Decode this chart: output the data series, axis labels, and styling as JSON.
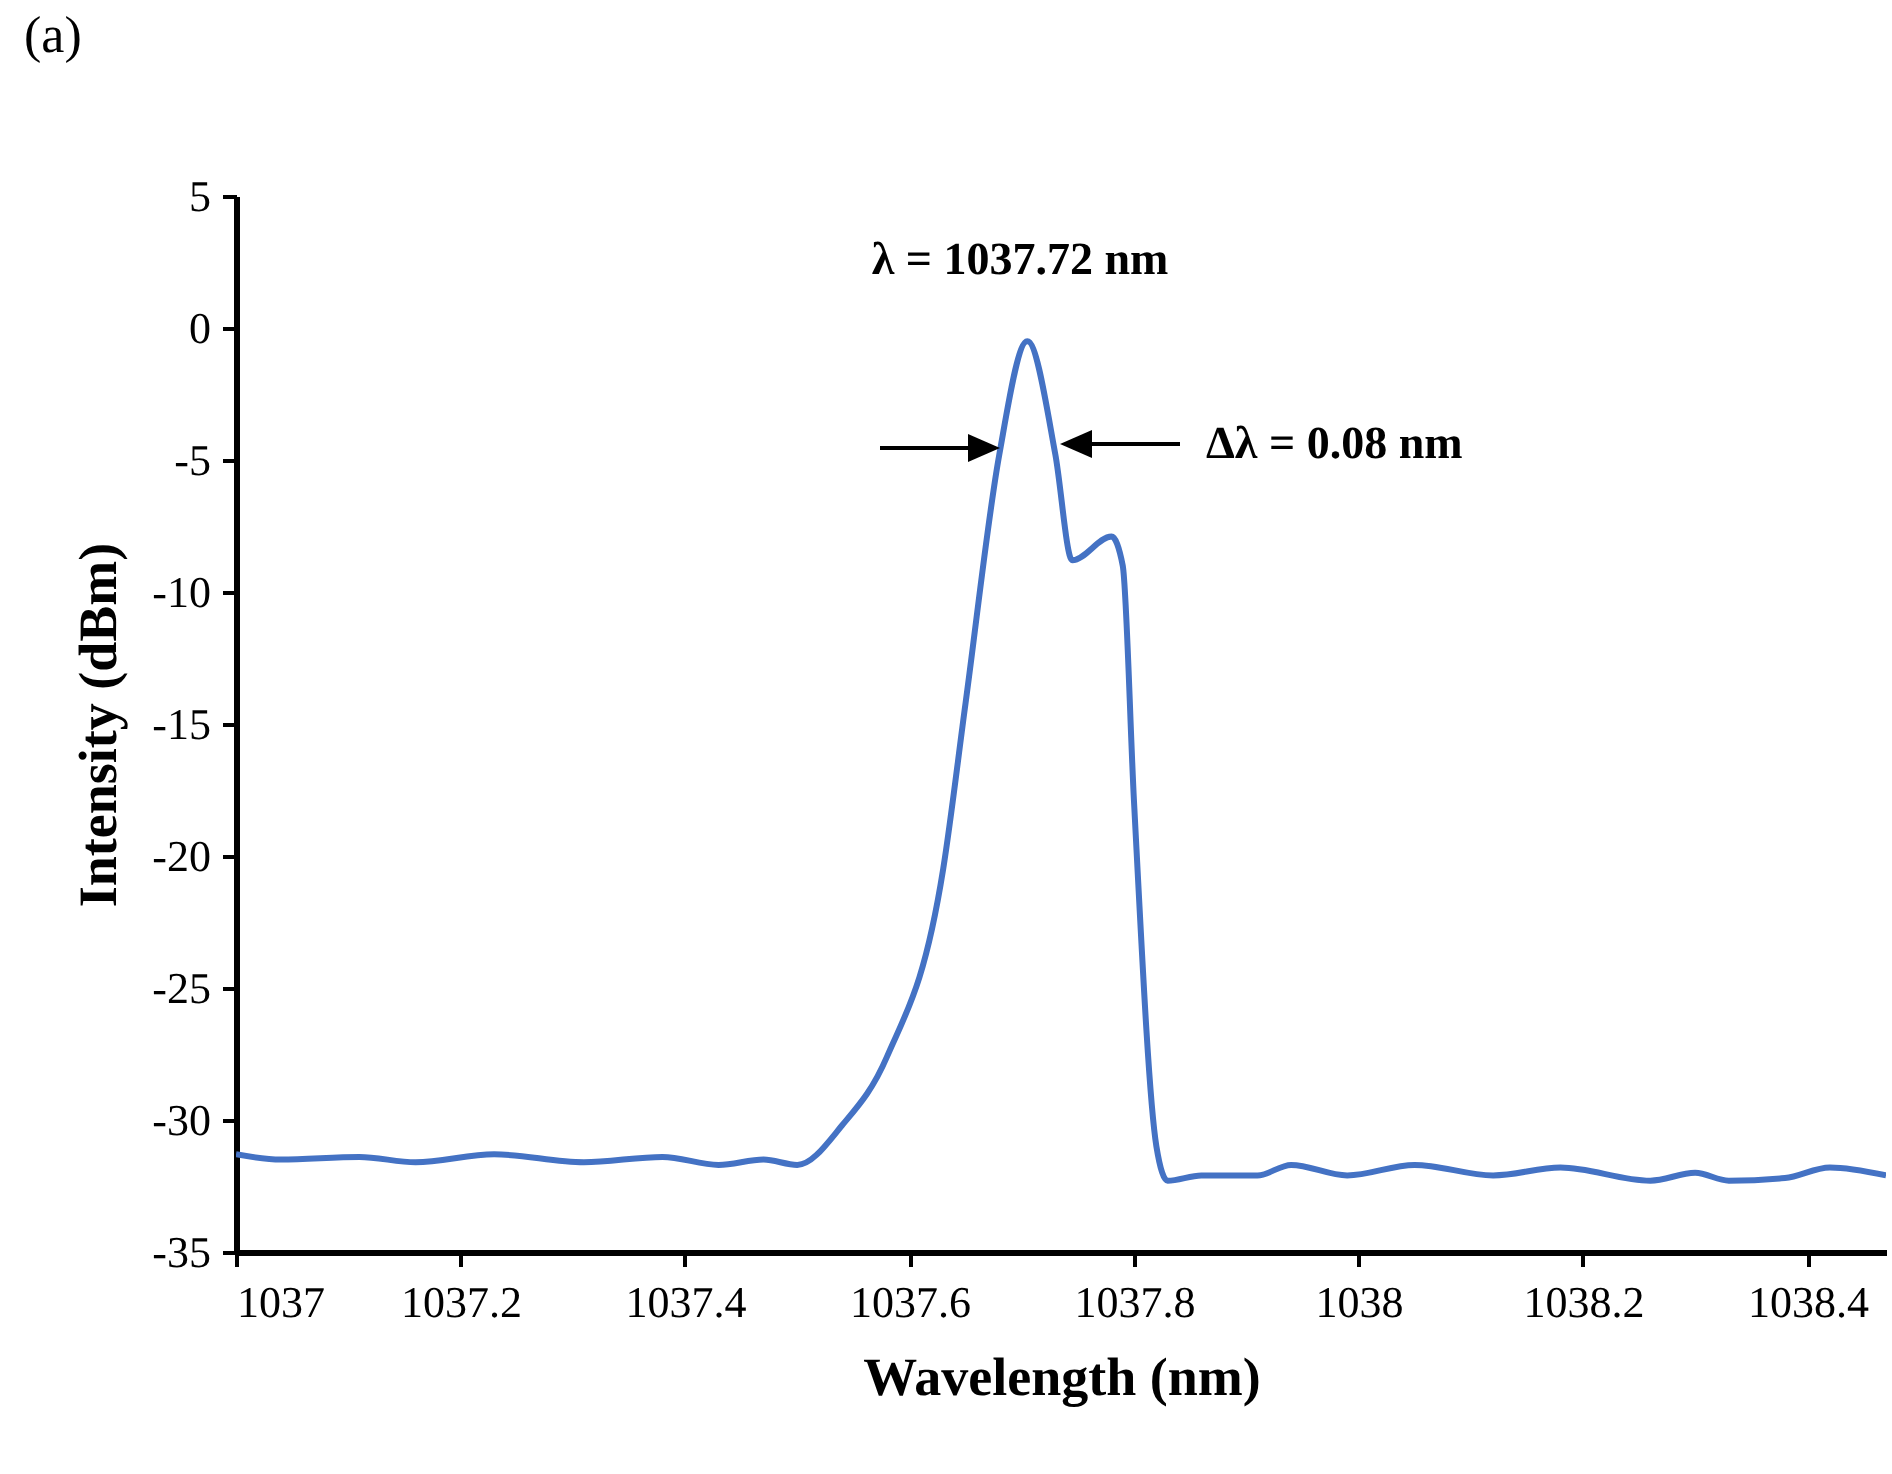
{
  "chart_data": {
    "type": "line",
    "title": "(a)",
    "xlabel": "Wavelength (nm)",
    "ylabel": "Intensity (dBm)",
    "x": [
      1037,
      1037.04,
      1037.11,
      1037.16,
      1037.23,
      1037.31,
      1037.38,
      1037.43,
      1037.47,
      1037.5,
      1037.54,
      1037.58,
      1037.63,
      1037.65,
      1037.68,
      1037.705,
      1037.73,
      1037.745,
      1037.78,
      1037.79,
      1037.8,
      1037.82,
      1037.83,
      1037.86,
      1037.91,
      1037.94,
      1037.99,
      1038.05,
      1038.12,
      1038.18,
      1038.26,
      1038.3,
      1038.33,
      1038.38,
      1038.42,
      1038.47
    ],
    "series": [
      {
        "color": "#4472c4",
        "values": [
          -31.3,
          -31.5,
          -31.4,
          -31.6,
          -31.3,
          -31.6,
          -31.4,
          -31.7,
          -31.5,
          -31.7,
          -30.2,
          -27.6,
          -20.5,
          -14.2,
          -4.8,
          -0.5,
          -4.8,
          -8.8,
          -7.9,
          -9.0,
          -17.9,
          -31.0,
          -32.3,
          -32.1,
          -32.1,
          -31.7,
          -32.1,
          -31.7,
          -32.1,
          -31.8,
          -32.3,
          -32.0,
          -32.3,
          -32.2,
          -31.8,
          -32.1
        ]
      }
    ],
    "xlim": [
      1037,
      1038.47
    ],
    "xticks": [
      1037,
      1037.2,
      1037.4,
      1037.6,
      1037.8,
      1038,
      1038.2,
      1038.4
    ],
    "ylim": [
      -35,
      5
    ],
    "yticks": [
      -35,
      -30,
      -25,
      -20,
      -15,
      -10,
      -5,
      0,
      5
    ],
    "annotations": [
      "λ = 1037.72 nm",
      "Δλ = 0.08 nm"
    ]
  }
}
